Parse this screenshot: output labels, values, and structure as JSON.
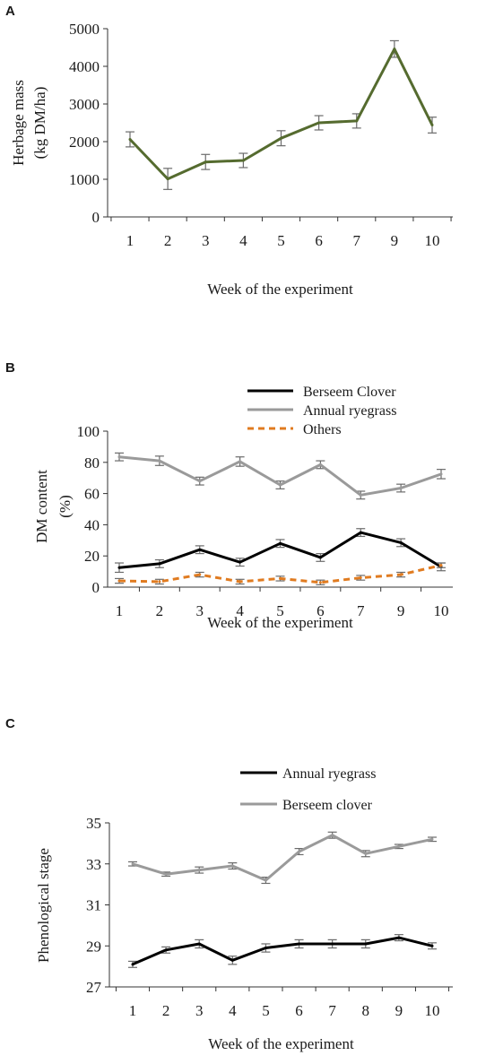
{
  "chart_data": [
    {
      "panel": "A",
      "type": "line",
      "title": "",
      "xlabel": "Week of the experiment",
      "ylabel": [
        "Herbage mass",
        "(kg DM/ha)"
      ],
      "categories": [
        "1",
        "2",
        "3",
        "4",
        "5",
        "6",
        "7",
        "9",
        "10"
      ],
      "ylim": [
        0,
        5000
      ],
      "yticks": [
        0,
        1000,
        2000,
        3000,
        4000,
        5000
      ],
      "grid": false,
      "legend": "none",
      "series": [
        {
          "values": [
            2060,
            1010,
            1460,
            1500,
            2090,
            2500,
            2550,
            4460,
            2440
          ],
          "errors": [
            200,
            280,
            200,
            190,
            200,
            190,
            190,
            220,
            210
          ],
          "color": "#556b2f",
          "dash": "solid"
        }
      ]
    },
    {
      "panel": "B",
      "type": "line",
      "title": "",
      "xlabel": "Week of the experiment",
      "ylabel": [
        "DM content",
        "(%)"
      ],
      "categories": [
        "1",
        "2",
        "3",
        "4",
        "5",
        "6",
        "7",
        "9",
        "10"
      ],
      "ylim": [
        0,
        100
      ],
      "yticks": [
        0,
        20,
        40,
        60,
        80,
        100
      ],
      "grid": false,
      "legend": "top-right",
      "series": [
        {
          "name": "Berseem Clover",
          "values": [
            12.5,
            15,
            24,
            16,
            28,
            19,
            35,
            28.5,
            13
          ],
          "errors": [
            3,
            2.5,
            2.5,
            2.5,
            2.5,
            2.5,
            2.5,
            2.5,
            2.5
          ],
          "color": "#000000",
          "dash": "solid"
        },
        {
          "name": "Annual ryegrass",
          "values": [
            83.5,
            81,
            68,
            80.5,
            65.5,
            78.5,
            59,
            63.5,
            72.5
          ],
          "errors": [
            2.5,
            3,
            2.5,
            3,
            2.5,
            2.5,
            2.5,
            2.5,
            3
          ],
          "color": "#9a9a9a",
          "dash": "solid"
        },
        {
          "name": "Others",
          "values": [
            4,
            3.5,
            8,
            3.5,
            5.5,
            3,
            6,
            8,
            14
          ],
          "errors": [
            1.5,
            1.5,
            1.5,
            1.5,
            1.5,
            1.5,
            1.5,
            1.5,
            1.5
          ],
          "color": "#e07b20",
          "dash": "dashed"
        }
      ]
    },
    {
      "panel": "C",
      "type": "line",
      "title": "",
      "xlabel": "Week of the experiment",
      "ylabel": [
        "Phenological stage"
      ],
      "categories": [
        "1",
        "2",
        "3",
        "4",
        "5",
        "6",
        "7",
        "8",
        "9",
        "10"
      ],
      "ylim": [
        27,
        35
      ],
      "yticks": [
        27,
        29,
        31,
        33,
        35
      ],
      "grid": false,
      "legend": "top",
      "series": [
        {
          "name": "Annual ryegrass",
          "values": [
            28.1,
            28.8,
            29.1,
            28.3,
            28.9,
            29.1,
            29.1,
            29.1,
            29.4,
            29.0
          ],
          "errors": [
            0.15,
            0.15,
            0.2,
            0.2,
            0.2,
            0.2,
            0.2,
            0.2,
            0.15,
            0.15
          ],
          "color": "#000000",
          "dash": "solid"
        },
        {
          "name": "Berseem clover",
          "values": [
            33.0,
            32.5,
            32.7,
            32.9,
            32.2,
            33.6,
            34.4,
            33.5,
            33.85,
            34.2
          ],
          "errors": [
            0.1,
            0.1,
            0.15,
            0.15,
            0.15,
            0.15,
            0.15,
            0.15,
            0.1,
            0.1
          ],
          "color": "#9a9a9a",
          "dash": "solid"
        }
      ]
    }
  ]
}
